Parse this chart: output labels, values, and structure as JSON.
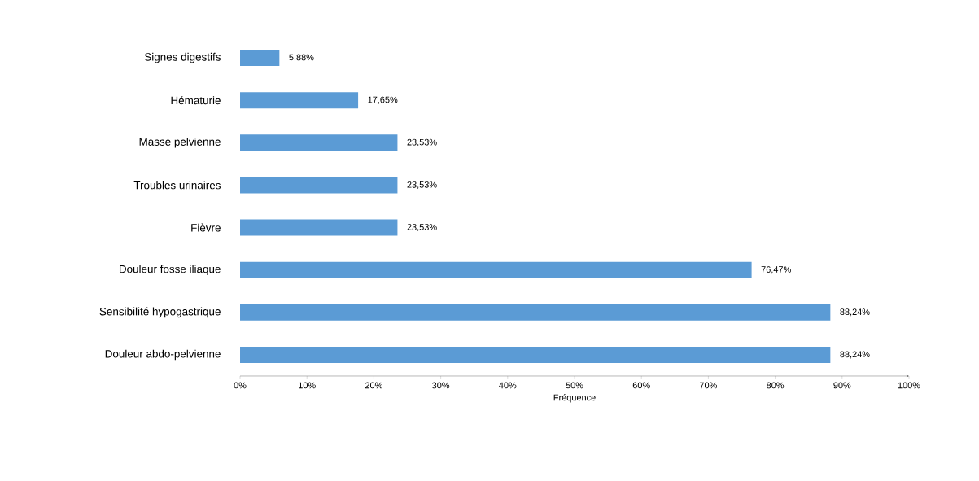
{
  "chart_data": {
    "type": "bar",
    "orientation": "horizontal",
    "xlabel": "Fréquence",
    "categories": [
      "Signes digestifs",
      "Hématurie",
      "Masse pelvienne",
      "Troubles urinaires",
      "Fièvre",
      "Douleur fosse iliaque",
      "Sensibilité hypogastrique",
      "Douleur abdo-pelvienne"
    ],
    "values": [
      5.88,
      17.65,
      23.53,
      23.53,
      23.53,
      76.47,
      88.24,
      88.24
    ],
    "value_labels": [
      "5,88%",
      "17,65%",
      "23,53%",
      "23,53%",
      "23,53%",
      "76,47%",
      "88,24%",
      "88,24%"
    ],
    "color": "#5b9bd5",
    "xlim": [
      0,
      100
    ],
    "xticks": [
      {
        "value": 0,
        "label": "0%"
      },
      {
        "value": 10,
        "label": "10%"
      },
      {
        "value": 20,
        "label": "20%"
      },
      {
        "value": 30,
        "label": "30%"
      },
      {
        "value": 40,
        "label": "40%"
      },
      {
        "value": 50,
        "label": "50%"
      },
      {
        "value": 60,
        "label": "60%"
      },
      {
        "value": 70,
        "label": "70%"
      },
      {
        "value": 80,
        "label": "80%"
      },
      {
        "value": 90,
        "label": "90%"
      },
      {
        "value": 100,
        "label": "100%"
      }
    ],
    "grid": false
  }
}
